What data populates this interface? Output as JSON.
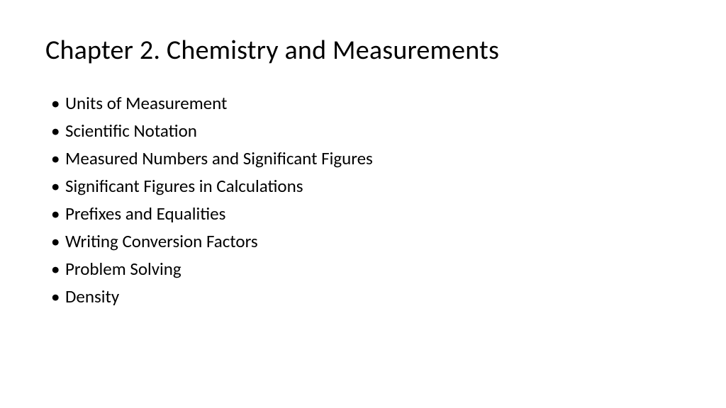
{
  "slide": {
    "title": "Chapter 2. Chemistry and Measurements",
    "bullets": [
      "Units of Measurement",
      "Scientific Notation",
      "Measured Numbers and Significant Figures",
      "Significant Figures in Calculations",
      "Prefixes and Equalities",
      "Writing Conversion Factors",
      "Problem Solving",
      "Density"
    ],
    "title_fontsize": 38,
    "bullet_fontsize": 25,
    "background_color": "#ffffff",
    "text_color": "#000000"
  }
}
